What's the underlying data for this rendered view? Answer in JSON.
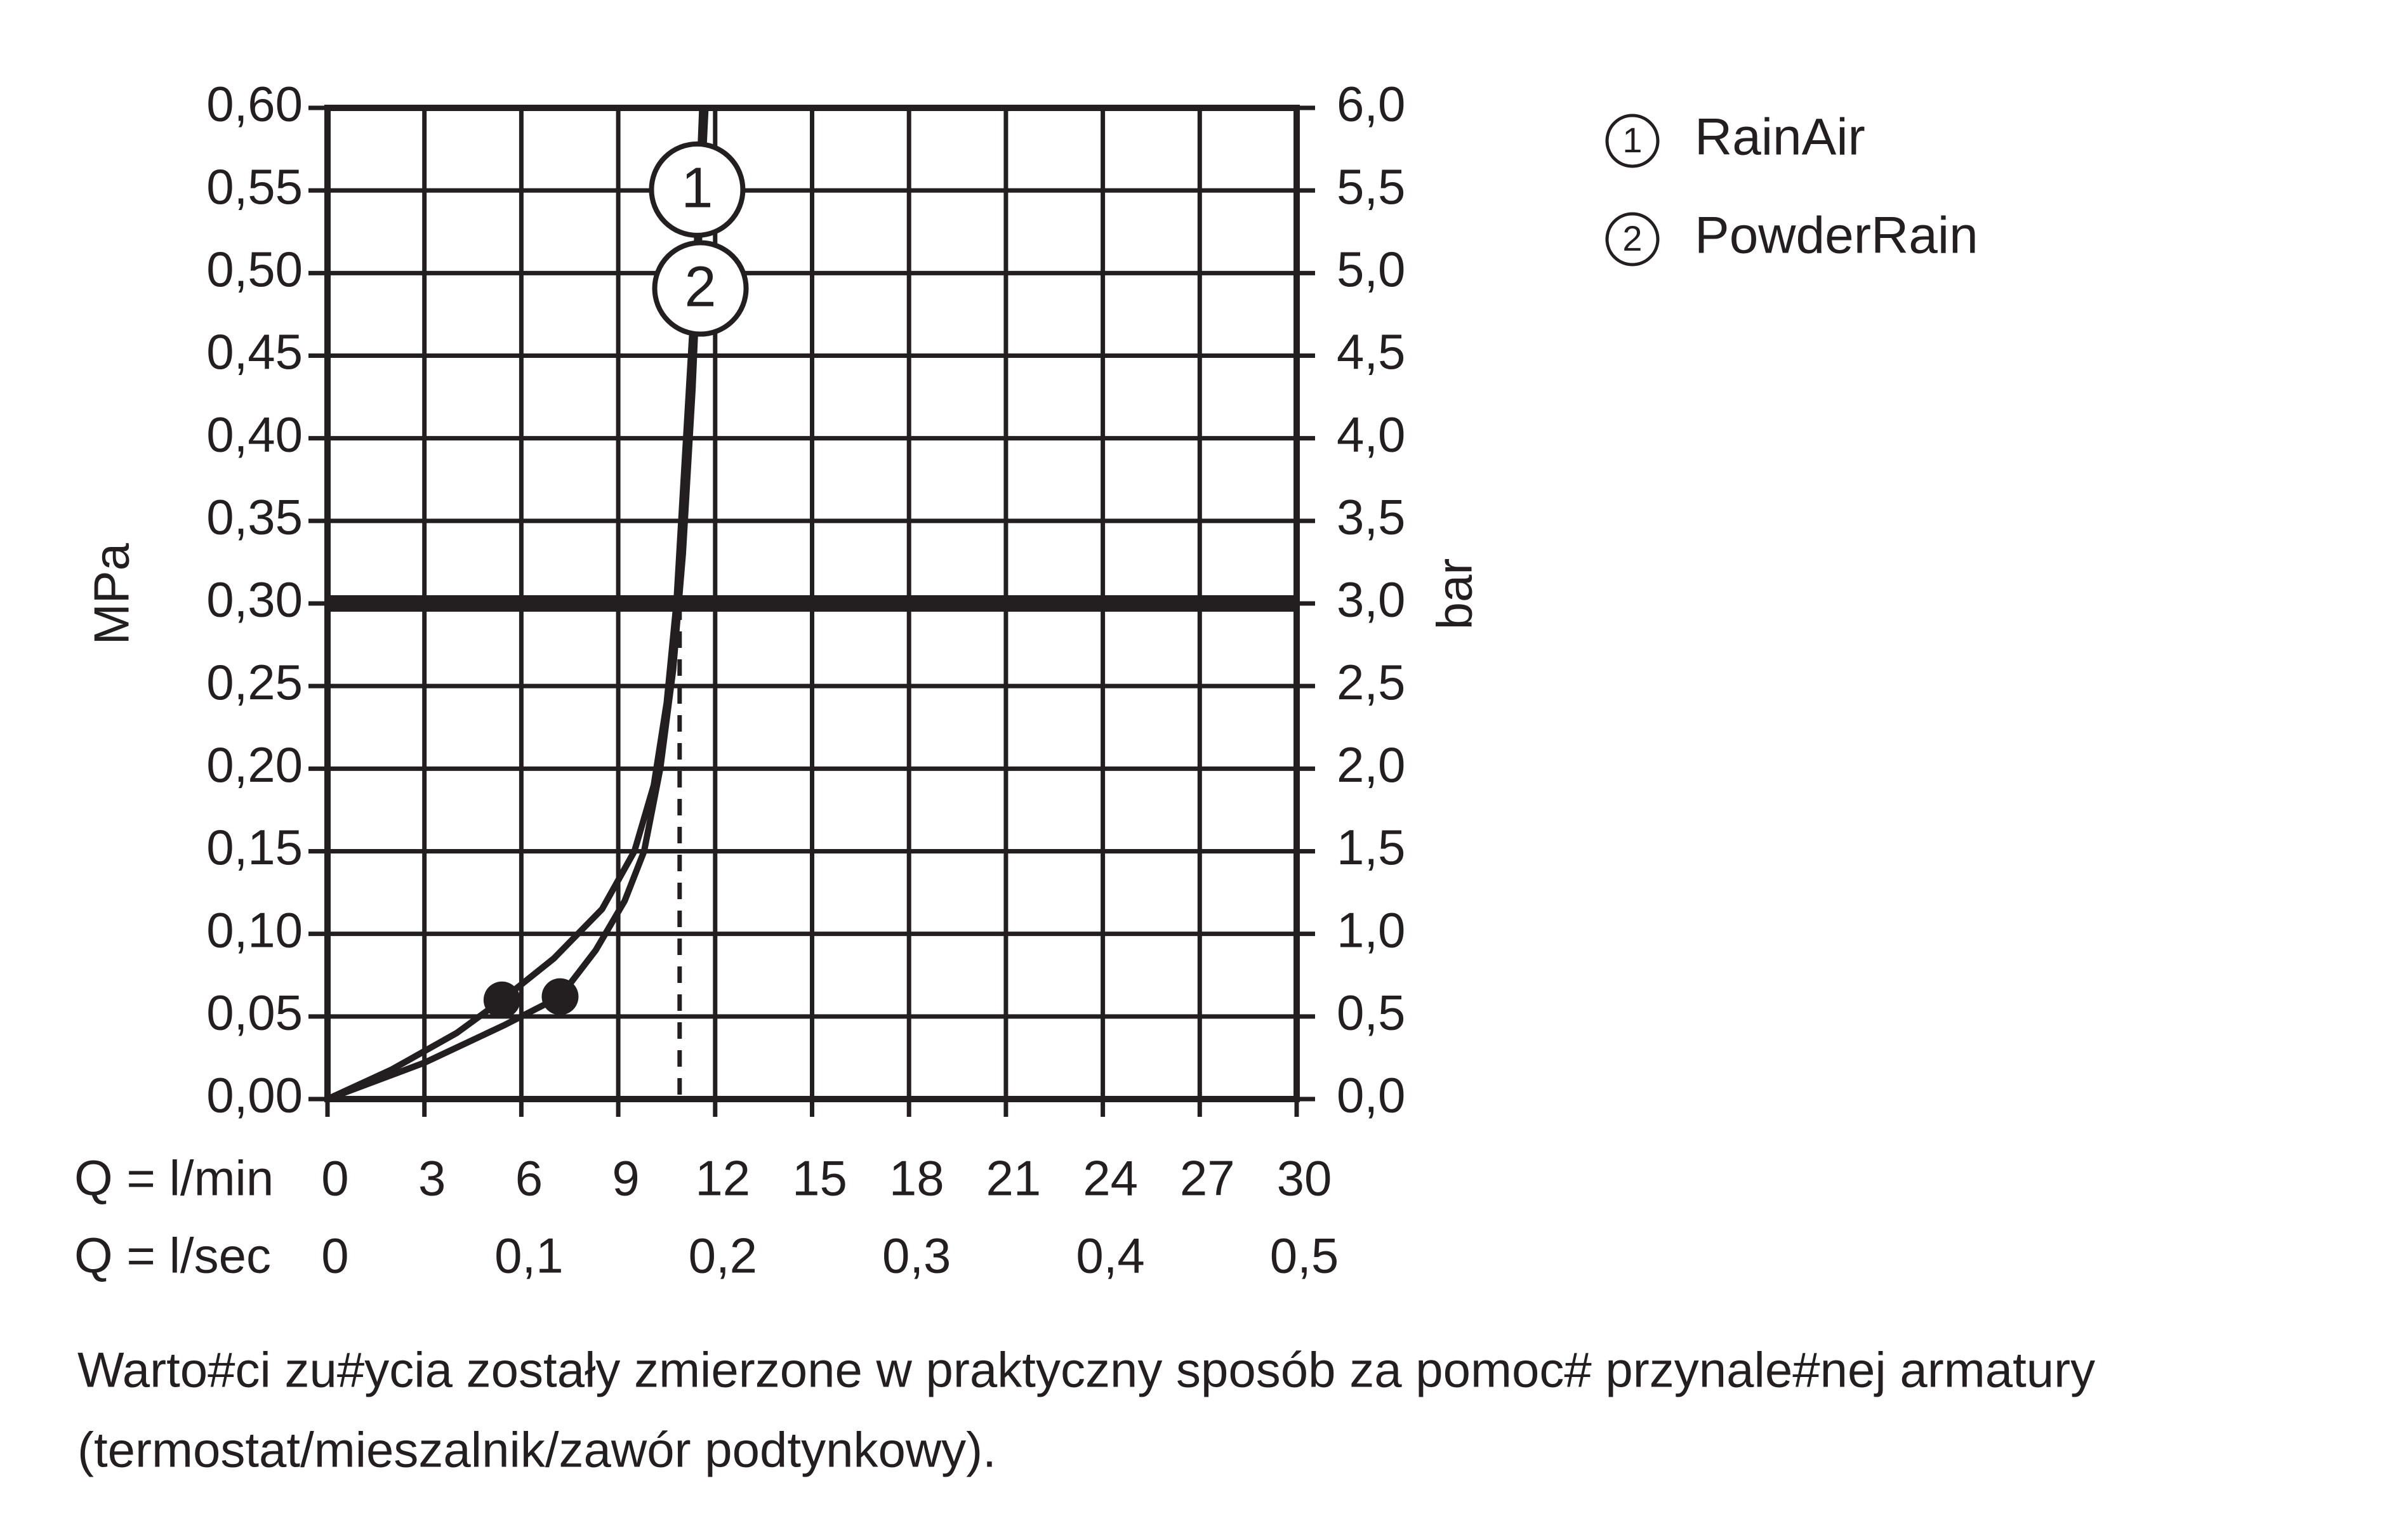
{
  "chart_data": {
    "type": "line",
    "ylabel": "MPa",
    "y2label": "bar",
    "xlabel": "Q = l/min",
    "x2label": "Q = l/sec",
    "xlim": [
      0,
      30
    ],
    "xticks": [
      0,
      3,
      6,
      9,
      12,
      15,
      18,
      21,
      24,
      27,
      30
    ],
    "x2lim": [
      0,
      0.5
    ],
    "x2ticks": [
      0,
      {
        "value": 0.1,
        "label": "0,1"
      },
      {
        "value": 0.2,
        "label": "0,2"
      },
      {
        "value": 0.3,
        "label": "0,3"
      },
      {
        "value": 0.4,
        "label": "0,4"
      },
      {
        "value": 0.5,
        "label": "0,5"
      }
    ],
    "ylim": [
      0,
      0.6
    ],
    "yticks": [
      {
        "value": 0,
        "label": "0,00"
      },
      {
        "value": 0.05,
        "label": "0,05"
      },
      {
        "value": 0.1,
        "label": "0,10"
      },
      {
        "value": 0.15,
        "label": "0,15"
      },
      {
        "value": 0.2,
        "label": "0,20"
      },
      {
        "value": 0.25,
        "label": "0,25"
      },
      {
        "value": 0.3,
        "label": "0,30"
      },
      {
        "value": 0.35,
        "label": "0,35"
      },
      {
        "value": 0.4,
        "label": "0,40"
      },
      {
        "value": 0.45,
        "label": "0,45"
      },
      {
        "value": 0.5,
        "label": "0,50"
      },
      {
        "value": 0.55,
        "label": "0,55"
      },
      {
        "value": 0.6,
        "label": "0,60"
      }
    ],
    "y2lim": [
      0,
      6
    ],
    "y2ticks": [
      {
        "value": 0,
        "label": "0,0"
      },
      {
        "value": 0.5,
        "label": "0,5"
      },
      {
        "value": 1,
        "label": "1,0"
      },
      {
        "value": 1.5,
        "label": "1,5"
      },
      {
        "value": 2,
        "label": "2,0"
      },
      {
        "value": 2.5,
        "label": "2,5"
      },
      {
        "value": 3,
        "label": "3,0"
      },
      {
        "value": 3.5,
        "label": "3,5"
      },
      {
        "value": 4,
        "label": "4,0"
      },
      {
        "value": 4.5,
        "label": "4,5"
      },
      {
        "value": 5,
        "label": "5,0"
      },
      {
        "value": 5.5,
        "label": "5,5"
      },
      {
        "value": 6,
        "label": "6,0"
      }
    ],
    "grid": true,
    "reference_y": 0.3,
    "reference_x": 10.9,
    "series": [
      {
        "name": "RainAir",
        "label": "1",
        "color": "#231f20",
        "x": [
          0,
          2,
          4,
          5.4,
          7,
          8.5,
          9.5,
          10.1,
          10.5,
          10.8,
          11.1,
          11.4,
          11.6
        ],
        "values": [
          0,
          0.018,
          0.04,
          0.06,
          0.085,
          0.115,
          0.15,
          0.19,
          0.24,
          0.3,
          0.4,
          0.5,
          0.6
        ],
        "marker": {
          "x": 5.4,
          "y": 0.06
        }
      },
      {
        "name": "PowderRain",
        "label": "2",
        "color": "#231f20",
        "x": [
          0,
          3,
          5.5,
          7.2,
          8.3,
          9.2,
          9.8,
          10.3,
          10.7,
          11.0,
          11.3,
          11.5,
          11.7
        ],
        "values": [
          0,
          0.022,
          0.045,
          0.062,
          0.09,
          0.12,
          0.15,
          0.2,
          0.26,
          0.33,
          0.43,
          0.52,
          0.6
        ],
        "marker": {
          "x": 7.2,
          "y": 0.062
        }
      }
    ],
    "footnote": [
      "Warto#ci zu#ycia zostały zmierzone w praktyczny sposób za pomoc# przynale#nej armatury",
      "(termostat/mieszalnik/zawór podtynkowy)."
    ]
  }
}
